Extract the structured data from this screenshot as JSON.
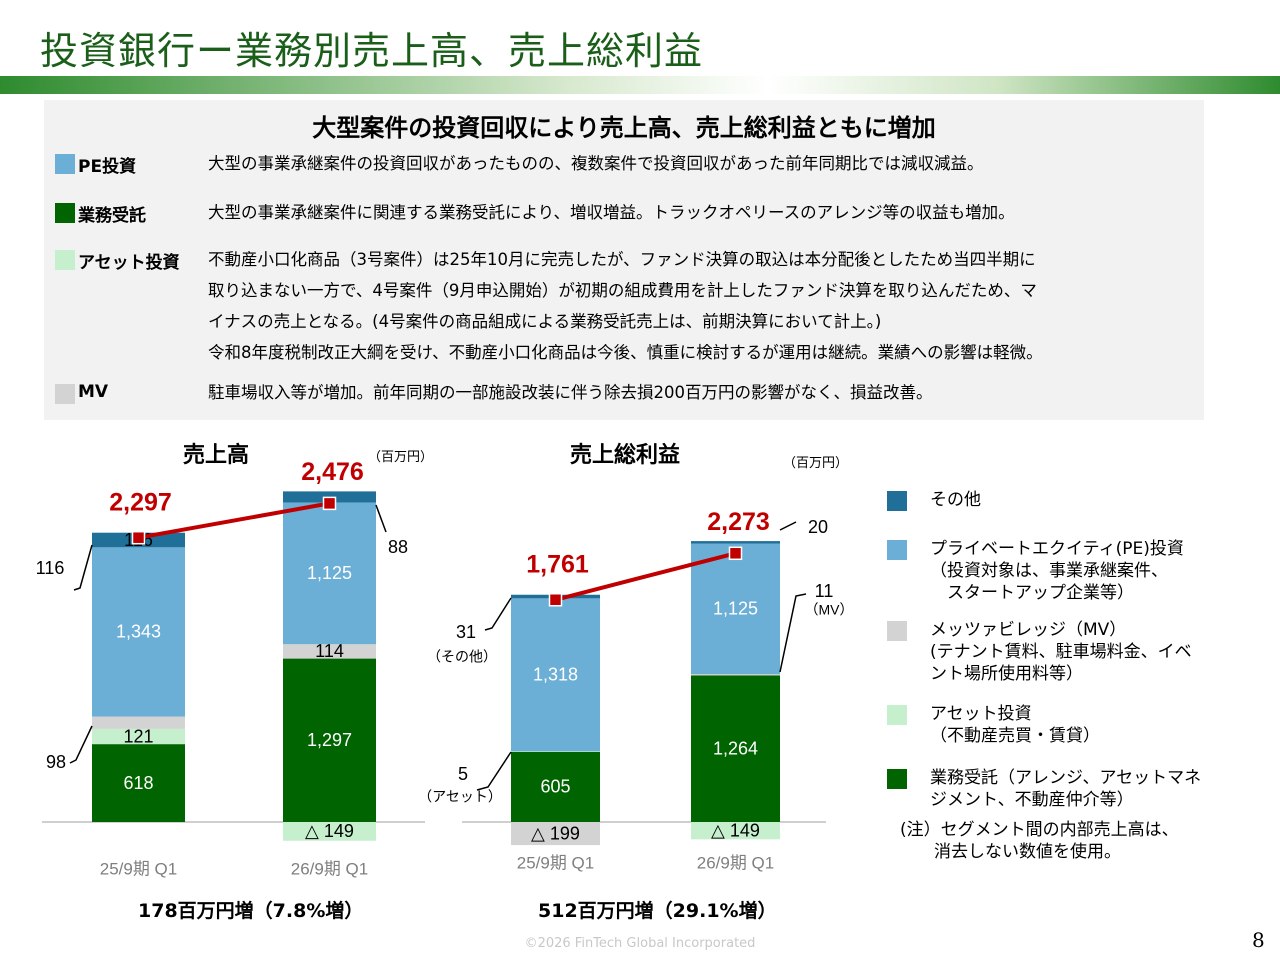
{
  "page": {
    "title": "投資銀行ー業務別売上高、売上総利益",
    "headline": "大型案件の投資回収により売上高、売上総利益ともに増加",
    "footer": "©2026 FinTech Global Incorporated",
    "page_number": "8"
  },
  "segments": [
    {
      "name": "PE投資",
      "color": "#6baed6",
      "lines": [
        "大型の事業承継案件の投資回収があったものの、複数案件で投資回収があった前年同期比では減収減益。"
      ]
    },
    {
      "name": "業務受託",
      "color": "#006400",
      "lines": [
        "大型の事業承継案件に関連する業務受託により、増収増益。トラックオペリースのアレンジ等の収益も増加。"
      ]
    },
    {
      "name": "アセット投資",
      "color": "#c6efce",
      "lines": [
        "不動産小口化商品（3号案件）は25年10月に完売したが、ファンド決算の取込は本分配後としたため当四半期に",
        "取り込まない一方で、4号案件（9月申込開始）が初期の組成費用を計上したファンド決算を取り込んだため、マ",
        "イナスの売上となる。(4号案件の商品組成による業務受託売上は、前期決算において計上。)",
        "令和8年度税制改正大綱を受け、不動産小口化商品は今後、慎重に検討するが運用は継続。業績への影響は軽微。"
      ]
    },
    {
      "name": "MV",
      "color": "#d3d3d3",
      "lines": [
        "駐車場収入等が増加。前年同期の一部施設改装に伴う除去損200百万円の影響がなく、損益改善。"
      ]
    }
  ],
  "colors": {
    "other": "#1f6f99",
    "pe": "#6baed6",
    "mv": "#d3d3d3",
    "asset": "#c6efce",
    "contract": "#006400",
    "total_line": "#c00000"
  },
  "legend": [
    {
      "key": "other",
      "lines": [
        "その他"
      ]
    },
    {
      "key": "pe",
      "lines": [
        "プライベートエクイティ(PE)投資",
        "（投資対象は、事業承継案件、",
        "　スタートアップ企業等）"
      ]
    },
    {
      "key": "mv",
      "lines": [
        "メッツァビレッジ（MV）",
        "(テナント賃料、駐車場料金、イベ",
        "ント場所使用料等）"
      ]
    },
    {
      "key": "asset",
      "lines": [
        "アセット投資",
        "（不動産売買・賃貸）"
      ]
    },
    {
      "key": "contract",
      "lines": [
        "業務受託（アレンジ、アセットマネ",
        "ジメント、不動産仲介等）"
      ]
    }
  ],
  "note_lines": [
    "(注）セグメント間の内部売上高は、",
    "　　消去しない数値を使用。"
  ],
  "chart_data": [
    {
      "type": "bar",
      "stacked": true,
      "title": "売上高",
      "unit": "（百万円）",
      "categories": [
        "25/9期 Q1",
        "26/9期 Q1"
      ],
      "series": [
        {
          "name": "業務受託",
          "key": "contract",
          "values": [
            618,
            1297
          ]
        },
        {
          "name": "アセット投資",
          "key": "asset",
          "values": [
            121,
            -149
          ]
        },
        {
          "name": "メッツァビレッジ（MV）",
          "key": "mv",
          "values": [
            98,
            114
          ]
        },
        {
          "name": "プライベートエクイティ(PE)投資",
          "key": "pe",
          "values": [
            1343,
            1125
          ]
        },
        {
          "name": "その他",
          "key": "other",
          "values": [
            116,
            88
          ]
        }
      ],
      "totals": [
        2297,
        2476
      ],
      "labels": {
        "contract": [
          "618",
          "1,297"
        ],
        "asset": [
          "121",
          "△ 149"
        ],
        "mv": [
          "98",
          "114"
        ],
        "pe": [
          "1,343",
          "1,125"
        ],
        "other": [
          "116",
          "88"
        ],
        "totals": [
          "2,297",
          "2,476"
        ]
      },
      "summary": "178百万円増（7.8%増）"
    },
    {
      "type": "bar",
      "stacked": true,
      "title": "売上総利益",
      "unit": "（百万円）",
      "categories": [
        "25/9期 Q1",
        "26/9期 Q1"
      ],
      "series": [
        {
          "name": "業務受託",
          "key": "contract",
          "values": [
            605,
            1264
          ]
        },
        {
          "name": "アセット投資",
          "key": "asset",
          "values": [
            5,
            -149
          ]
        },
        {
          "name": "メッツァビレッジ（MV）",
          "key": "mv",
          "values": [
            -199,
            11
          ]
        },
        {
          "name": "プライベートエクイティ(PE)投資",
          "key": "pe",
          "values": [
            1318,
            1125
          ]
        },
        {
          "name": "その他",
          "key": "other",
          "values": [
            31,
            20
          ]
        }
      ],
      "totals": [
        1761,
        2273
      ],
      "labels": {
        "contract": [
          "605",
          "1,264"
        ],
        "asset": [
          "5",
          "△ 149"
        ],
        "mv": [
          "△ 199",
          "11"
        ],
        "pe": [
          "1,318",
          "1,125"
        ],
        "other": [
          "31",
          "20"
        ],
        "totals": [
          "1,761",
          "2,273"
        ]
      },
      "annotations": {
        "other": "（その他）",
        "asset": "（アセット）",
        "mv": "（MV）"
      },
      "summary": "512百万円増（29.1%増）"
    }
  ]
}
